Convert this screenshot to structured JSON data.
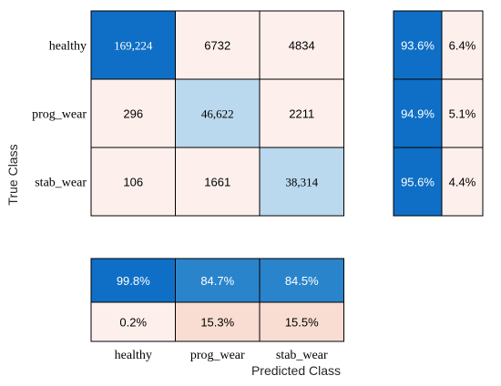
{
  "chart_data": {
    "type": "heatmap",
    "title": "",
    "xlabel": "Predicted Class",
    "ylabel": "True Class",
    "classes": [
      "healthy",
      "prog_wear",
      "stab_wear"
    ],
    "matrix": [
      [
        {
          "value": 169224,
          "label": "169,224"
        },
        {
          "value": 6732,
          "label": "6732"
        },
        {
          "value": 4834,
          "label": "4834"
        }
      ],
      [
        {
          "value": 296,
          "label": "296"
        },
        {
          "value": 46622,
          "label": "46,622"
        },
        {
          "value": 2211,
          "label": "2211"
        }
      ],
      [
        {
          "value": 106,
          "label": "106"
        },
        {
          "value": 1661,
          "label": "1661"
        },
        {
          "value": 38314,
          "label": "38,314"
        }
      ]
    ],
    "row_summary": [
      [
        {
          "value": 93.6,
          "label": "93.6%"
        },
        {
          "value": 6.4,
          "label": "6.4%"
        }
      ],
      [
        {
          "value": 94.9,
          "label": "94.9%"
        },
        {
          "value": 5.1,
          "label": "5.1%"
        }
      ],
      [
        {
          "value": 95.6,
          "label": "95.6%"
        },
        {
          "value": 4.4,
          "label": "4.4%"
        }
      ]
    ],
    "column_summary": [
      [
        {
          "value": 99.8,
          "label": "99.8%"
        },
        {
          "value": 84.7,
          "label": "84.7%"
        },
        {
          "value": 84.5,
          "label": "84.5%"
        }
      ],
      [
        {
          "value": 0.2,
          "label": "0.2%"
        },
        {
          "value": 15.3,
          "label": "15.3%"
        },
        {
          "value": 15.5,
          "label": "15.5%"
        }
      ]
    ],
    "colors": {
      "correct_strong": "#0F6FC6",
      "correct_light": "#BAD8EE",
      "correct_mid": "#2A84CB",
      "incorrect_light": "#FDF0EC",
      "incorrect_mid": "#F9DDD3",
      "grid_line": "#000000",
      "text_on_dark": "#FFFFFF",
      "text_on_light": "#000000"
    }
  }
}
